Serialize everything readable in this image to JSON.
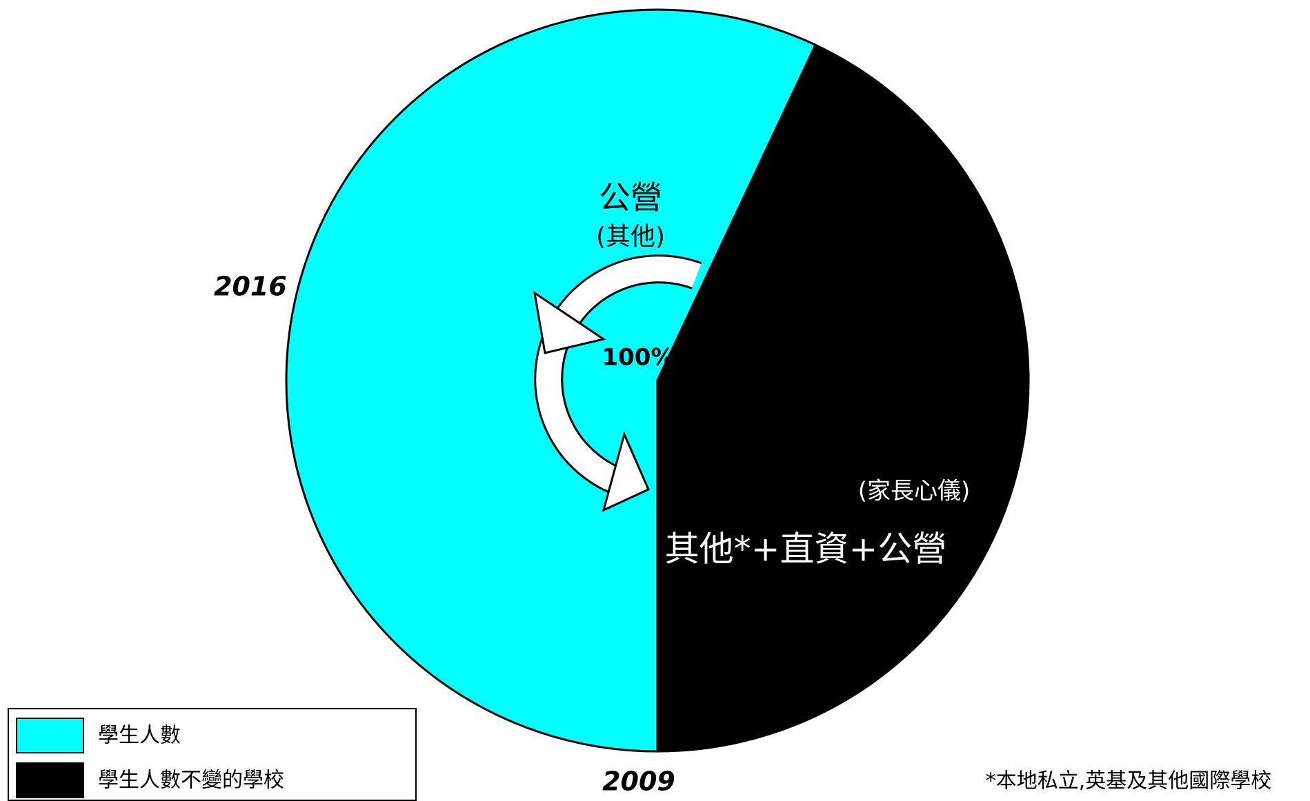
{
  "chart_data": {
    "type": "pie",
    "categories": [
      "學生人數",
      "學生人數不變的學校"
    ],
    "values": [
      57,
      43
    ],
    "colors": [
      "#00ffff",
      "#000000"
    ],
    "start_angle": 180,
    "legend": "bottom-left",
    "annotations": [
      "公營",
      "(其他)",
      "2016",
      "100%",
      "(家長心儀)",
      "其他*+直資+公營",
      "2009"
    ],
    "footnote": "*本地私立,英基及其他國際學校"
  }
}
